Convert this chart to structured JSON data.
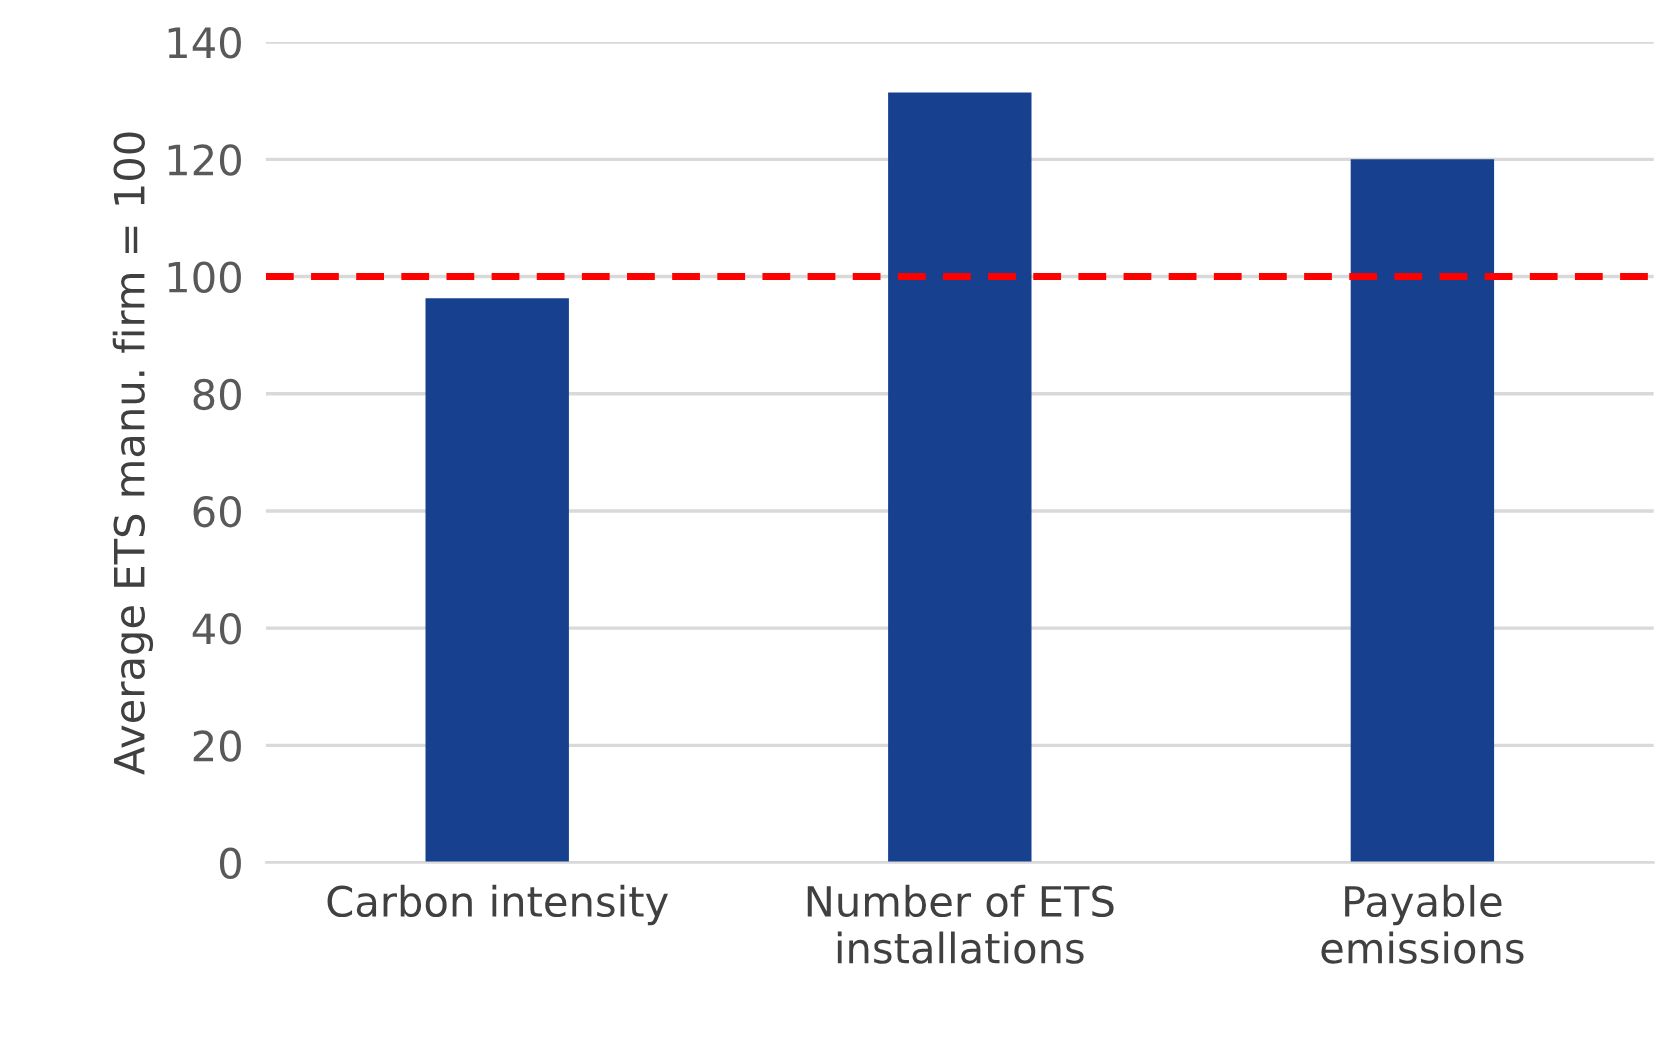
{
  "chart_data": {
    "type": "bar",
    "ylabel": "Average ETS manu. firm = 100",
    "categories": [
      "Carbon intensity",
      "Number of ETS\ninstallations",
      "Payable\nemissions"
    ],
    "values": [
      96.3,
      131.4,
      120
    ],
    "color": "#17418f",
    "ylim": [
      0,
      140
    ],
    "yticks": [
      0,
      20,
      40,
      60,
      80,
      100,
      120,
      140
    ],
    "grid": "y",
    "legend": false,
    "ref_lines": [
      {
        "axis": "y",
        "value": 100,
        "label": null,
        "color": "#ff0000",
        "line_style": "dashed"
      }
    ]
  }
}
